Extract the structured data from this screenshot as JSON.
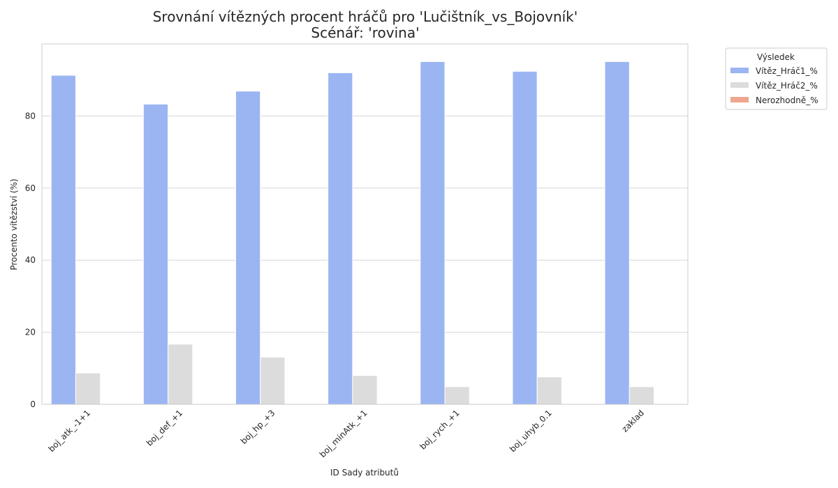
{
  "chart_data": {
    "type": "bar",
    "title": "Srovnání vítězných procent hráčů pro 'Lučištník_vs_Bojovník'",
    "subtitle": "Scénář: 'rovina'",
    "xlabel": "ID Sady atributů",
    "ylabel": "Procento vítězství (%)",
    "ylim": [
      0,
      100
    ],
    "yticks": [
      0,
      20,
      40,
      60,
      80
    ],
    "grid": true,
    "legend_title": "Výsledek",
    "legend_position": "outside-top-right",
    "categories": [
      "boj_atk_-1+1",
      "boj_def_+1",
      "boj_hp_+3",
      "boj_minAtk_+1",
      "boj_rych_+1",
      "boj_uhyb_0.1",
      "zaklad"
    ],
    "series": [
      {
        "name": "Vítěz_Hráč1_%",
        "color": "#9bb5f2",
        "values": [
          91.3,
          83.3,
          86.9,
          92.0,
          95.1,
          92.4,
          95.1
        ]
      },
      {
        "name": "Vítěz_Hráč2_%",
        "color": "#dcdcdc",
        "values": [
          8.7,
          16.7,
          13.1,
          8.0,
          4.9,
          7.6,
          4.9
        ]
      },
      {
        "name": "Nerozhodně_%",
        "color": "#eea78e",
        "values": [
          0,
          0,
          0,
          0,
          0,
          0,
          0
        ]
      }
    ]
  }
}
